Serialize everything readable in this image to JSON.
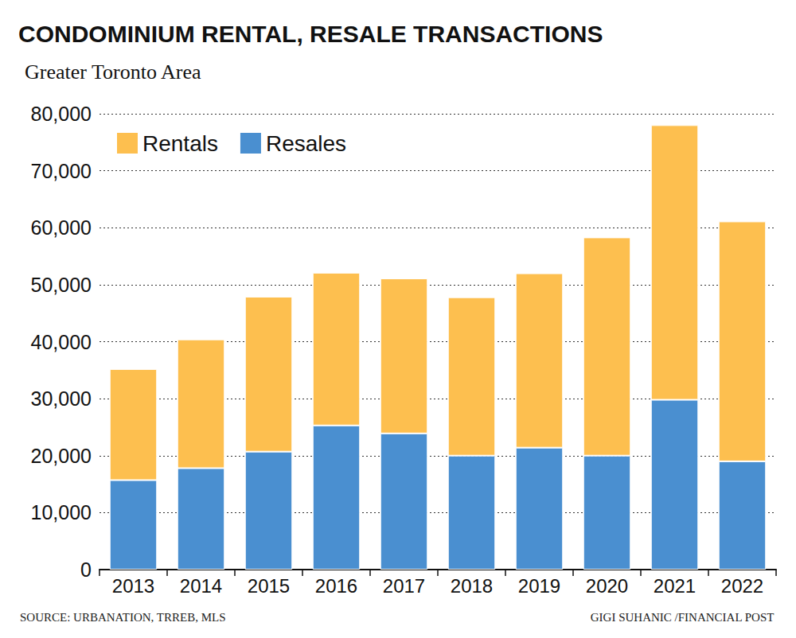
{
  "chart_data": {
    "type": "bar",
    "title": "CONDOMINIUM RENTAL, RESALE TRANSACTIONS",
    "subtitle": "Greater Toronto Area",
    "annotations": [
      "SOURCE: URBANATION, TRREB, MLS",
      "GIGI SUHANIC /FINANCIAL POST"
    ],
    "categories": [
      "2013",
      "2014",
      "2015",
      "2016",
      "2017",
      "2018",
      "2019",
      "2020",
      "2021",
      "2022"
    ],
    "series": [
      {
        "name": "Rentals",
        "color": "#fdbf4f",
        "values": [
          19500,
          22600,
          27200,
          26800,
          27200,
          27800,
          30600,
          38300,
          48200,
          42100
        ]
      },
      {
        "name": "Resales",
        "color": "#4a8fd0",
        "values": [
          15700,
          17800,
          20700,
          25300,
          23900,
          20000,
          21400,
          20000,
          29800,
          19000
        ]
      }
    ],
    "stacked": true,
    "ylim": [
      0,
      80000
    ],
    "yticks": [
      0,
      {
        "value": 10000,
        "label": "10,000"
      },
      {
        "value": 20000,
        "label": "20,000"
      },
      {
        "value": 30000,
        "label": "30,000"
      },
      {
        "value": 40000,
        "label": "40,000"
      },
      {
        "value": 50000,
        "label": "50,000"
      },
      {
        "value": 60000,
        "label": "60,000"
      },
      {
        "value": 70000,
        "label": "70,000"
      },
      {
        "value": 80000,
        "label": "80,000"
      }
    ],
    "grid": true,
    "legend": "top-left"
  }
}
